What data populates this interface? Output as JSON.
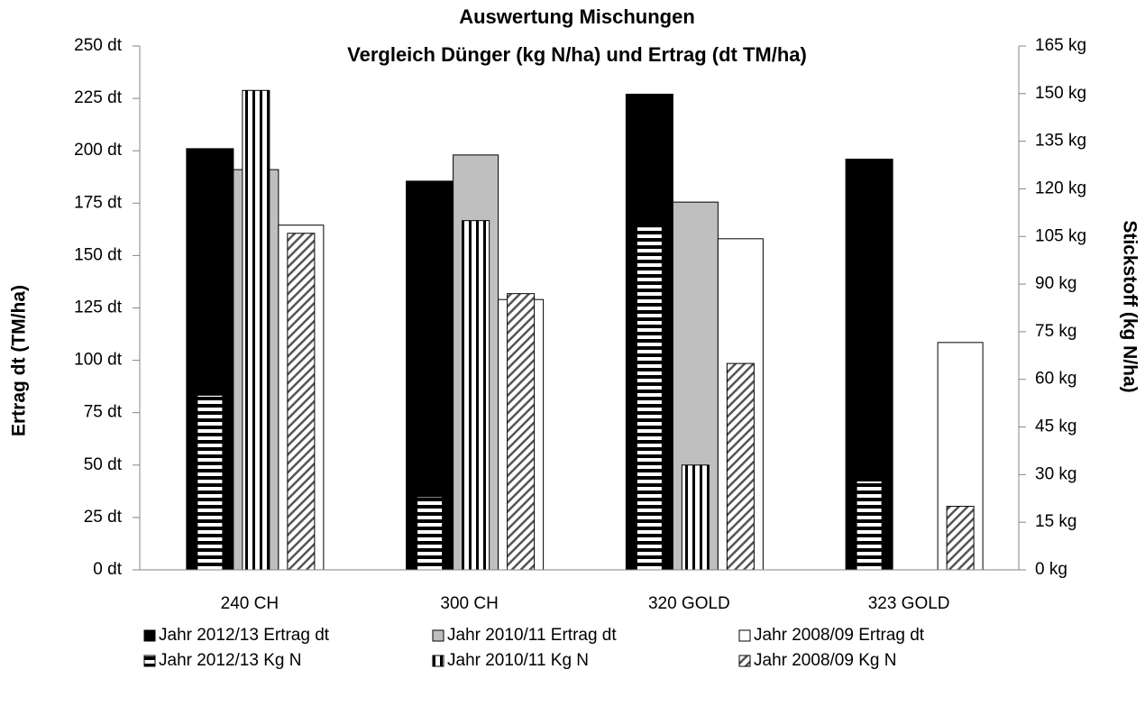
{
  "chart_data": {
    "type": "bar",
    "title": "Auswertung Mischungen",
    "subtitle": "Vergleich Dünger (kg N/ha) und Ertrag (dt TM/ha)",
    "ylabel": "Ertrag dt (TM/ha)",
    "y2label": "Stickstoff (kg N/ha)",
    "categories": [
      "240 CH",
      "300 CH",
      "320 GOLD",
      "323 GOLD"
    ],
    "series": [
      {
        "name": "Jahr 2012/13 Ertrag dt",
        "color": "#000000",
        "pattern": "solid",
        "values": [
          201,
          185.5,
          227,
          196
        ]
      },
      {
        "name": "Jahr 2010/11 Ertrag dt",
        "color": "#bfbfbf",
        "pattern": "solid",
        "values": [
          191,
          198,
          175.5,
          null
        ]
      },
      {
        "name": "Jahr 2008/09 Ertrag dt",
        "color": "#ffffff",
        "pattern": "solid",
        "values": [
          164.5,
          129,
          158,
          108.5
        ]
      },
      {
        "name": "Jahr 2012/13 Kg N",
        "color": "#000000",
        "pattern": "horizontal",
        "axis": "y2",
        "values": [
          55,
          23,
          108,
          28
        ]
      },
      {
        "name": "Jahr 2010/11 Kg N",
        "color": "#000000",
        "pattern": "vertical",
        "axis": "y2",
        "values": [
          151,
          110,
          33,
          null
        ]
      },
      {
        "name": "Jahr 2008/09 Kg N",
        "color": "#000000",
        "pattern": "diagonal",
        "axis": "y2",
        "values": [
          106,
          87,
          65,
          20
        ]
      }
    ],
    "ylim": [
      0,
      250
    ],
    "yticks": [
      {
        "value": 0,
        "label": "0 dt"
      },
      {
        "value": 25,
        "label": "25 dt"
      },
      {
        "value": 50,
        "label": "50 dt"
      },
      {
        "value": 75,
        "label": "75 dt"
      },
      {
        "value": 100,
        "label": "100 dt"
      },
      {
        "value": 125,
        "label": "125 dt"
      },
      {
        "value": 150,
        "label": "150 dt"
      },
      {
        "value": 175,
        "label": "175 dt"
      },
      {
        "value": 200,
        "label": "200 dt"
      },
      {
        "value": 225,
        "label": "225 dt"
      },
      {
        "value": 250,
        "label": "250 dt"
      }
    ],
    "y2lim": [
      0,
      165
    ],
    "y2ticks": [
      {
        "value": 0,
        "label": "0 kg"
      },
      {
        "value": 15,
        "label": "15 kg"
      },
      {
        "value": 30,
        "label": "30 kg"
      },
      {
        "value": 45,
        "label": "45 kg"
      },
      {
        "value": 60,
        "label": "60 kg"
      },
      {
        "value": 75,
        "label": "75 kg"
      },
      {
        "value": 90,
        "label": "90 kg"
      },
      {
        "value": 105,
        "label": "105 kg"
      },
      {
        "value": 120,
        "label": "120 kg"
      },
      {
        "value": 135,
        "label": "135 kg"
      },
      {
        "value": 150,
        "label": "150 kg"
      },
      {
        "value": 165,
        "label": "165 kg"
      }
    ],
    "grid": false,
    "legend": "bottom"
  }
}
